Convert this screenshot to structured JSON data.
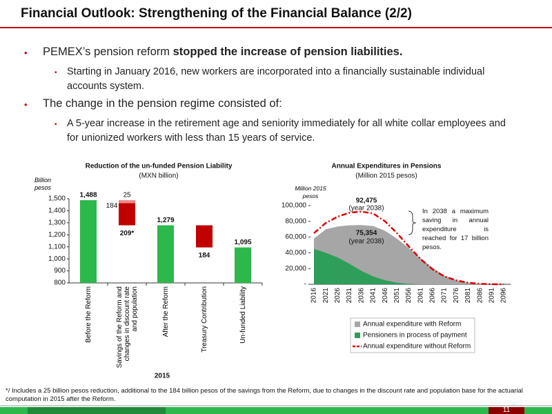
{
  "header": {
    "title": "Financial Outlook: Strengthening of the Financial Balance (2/2)"
  },
  "bullets": [
    {
      "text": "PEMEX’s pension reform ",
      "bold": "stopped the increase of pension liabilities.",
      "sub": [
        "Starting in January 2016, new workers are incorporated into a financially sustainable individual accounts system."
      ]
    },
    {
      "text": "The change in the pension regime consisted of:",
      "bold": null,
      "sub": [
        "A 5-year increase in the retirement age and seniority immediately for all white collar employees and for unionized workers with less than 15 years of service."
      ]
    }
  ],
  "chart_data": [
    {
      "type": "waterfall",
      "title": "Reduction of the un-funded Pension Liability",
      "subtitle": "(MXN billion)",
      "y_label": "Billion pesos",
      "x_label": "2015",
      "categories": [
        "Before the Reform",
        "Savings of the Reform and changes in discount rate and population",
        "After the Reform",
        "Treasury Contribution",
        "Un-funded Liability"
      ],
      "values": [
        1488,
        null,
        1279,
        null,
        1095
      ],
      "value_labels": [
        "1,488",
        null,
        "1,279",
        null,
        "1,095"
      ],
      "color": "#2db84b",
      "decreases": [
        null,
        [
          184,
          25
        ],
        null,
        [
          184
        ],
        null
      ],
      "decrease_colors": [
        "#c00000",
        "#f08a8a"
      ],
      "decrease_labels": [
        null,
        "209*",
        null,
        null,
        null
      ],
      "ylim": [
        800,
        1500
      ],
      "yticks": [
        800,
        900,
        {
          "value": 1000,
          "label": "1,000"
        },
        {
          "value": 1100,
          "label": "1,100"
        },
        {
          "value": 1200,
          "label": "1,200"
        },
        {
          "value": 1300,
          "label": "1,300"
        },
        {
          "value": 1400,
          "label": "1,400"
        },
        {
          "value": 1500,
          "label": "1,500"
        }
      ]
    },
    {
      "type": "area",
      "title": "Annual Expenditures in Pensions",
      "subtitle": "(Million 2015 pesos)",
      "y_label": "Million 2015 pesos",
      "categories": [
        "2016",
        "2021",
        "2026",
        "2031",
        "2036",
        "2041",
        "2046",
        "2051",
        "2056",
        "2061",
        "2066",
        "2071",
        "2076",
        "2081",
        "2086",
        "2091",
        "2096"
      ],
      "series": [
        {
          "name": "Annual expenditure with Reform",
          "color": "#a6a6a6",
          "kind": "area",
          "values": [
            58000,
            70000,
            73500,
            75000,
            75300,
            74000,
            68000,
            58000,
            46000,
            33000,
            21000,
            11000,
            5000,
            2000,
            500,
            0,
            0
          ]
        },
        {
          "name": "Pensioners in process of payment",
          "color": "#2e9e5a",
          "kind": "area",
          "values": [
            45000,
            40000,
            34000,
            26000,
            17000,
            10000,
            5000,
            2000,
            500,
            0,
            0,
            0,
            0,
            0,
            0,
            0,
            0
          ]
        },
        {
          "name": "Annual expenditure without Reform",
          "color": "#e00000",
          "kind": "line",
          "values": [
            65000,
            78000,
            86000,
            91000,
            92400,
            90000,
            80000,
            65000,
            48000,
            32000,
            19000,
            10000,
            5000,
            2000,
            600,
            100,
            0
          ]
        }
      ],
      "annotations": [
        "92,475",
        "(year 2038)",
        "75,354",
        "(year 2038)"
      ],
      "note": "In 2038 a maximum saving in annual expenditure is reached for 17 billion pesos.",
      "ylim": [
        0,
        100000
      ],
      "yticks": [
        {
          "value": 0,
          "label": "-"
        },
        {
          "value": 20000,
          "label": "20,000"
        },
        {
          "value": 40000,
          "label": "40,000"
        },
        {
          "value": 60000,
          "label": "60,000"
        },
        {
          "value": 80000,
          "label": "80,000"
        },
        {
          "value": 100000,
          "label": "100,000"
        }
      ]
    }
  ],
  "footnote": "*/ Includes a 25 billion pesos reduction, additional to the 184 billion pesos of the savings from the Reform, due to changes in the discount rate and population base for the actuarial computation in 2015 after the Reform.",
  "page_number": "11"
}
